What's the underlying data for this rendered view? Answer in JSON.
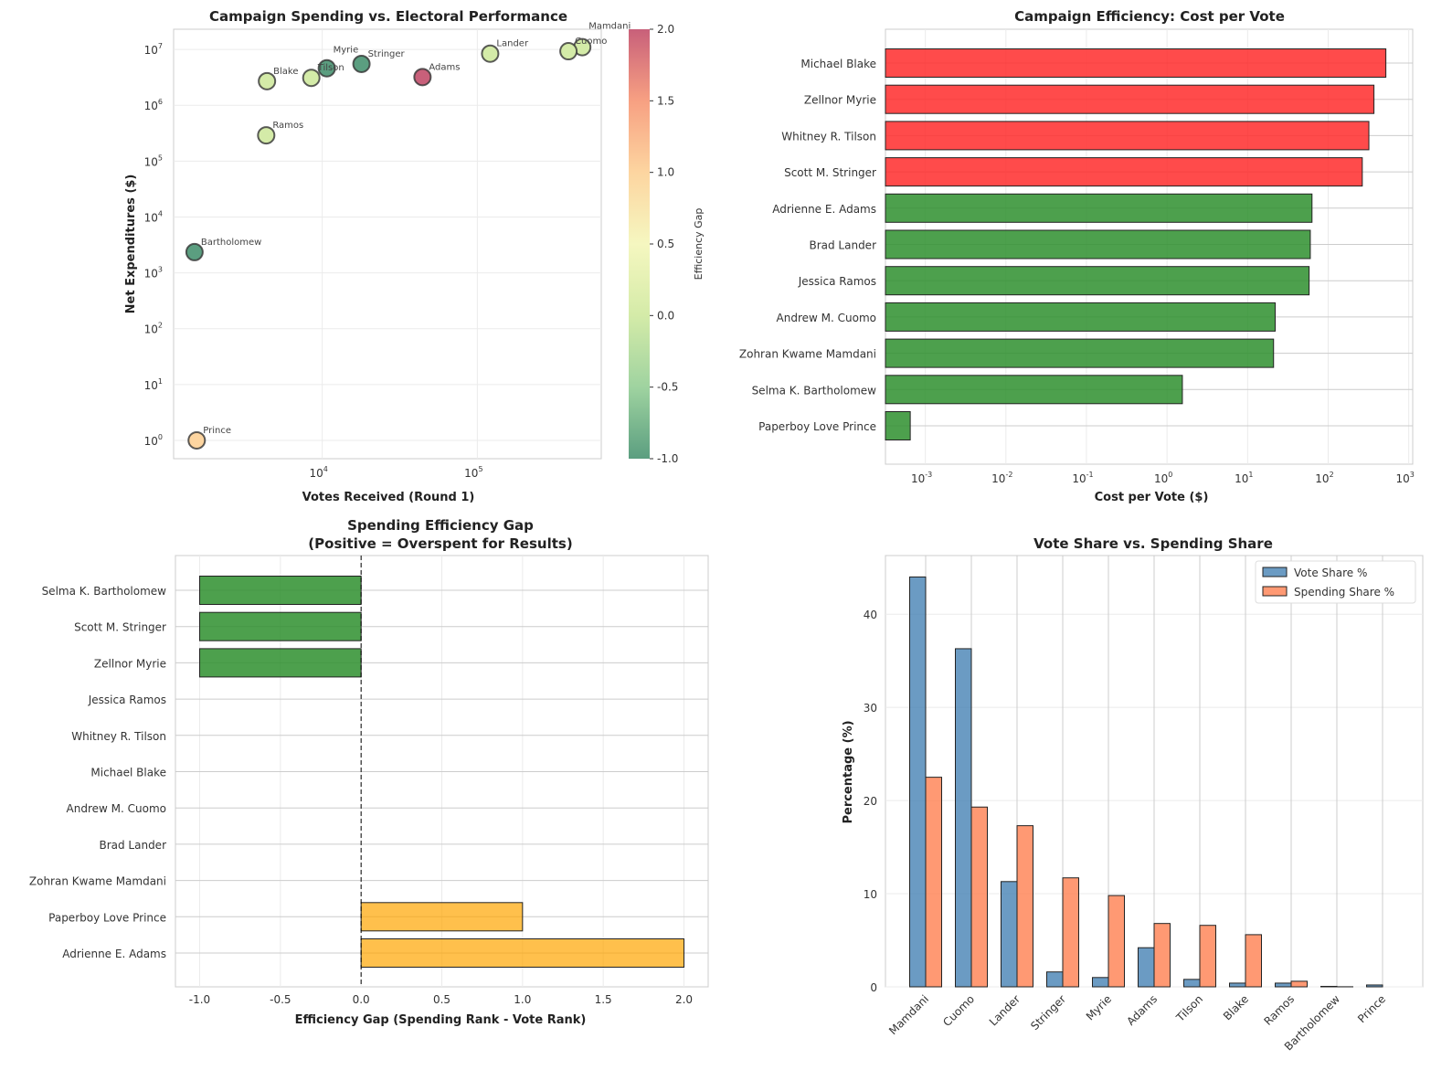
{
  "chart_data": [
    {
      "type": "scatter",
      "title": "Campaign Spending vs. Electoral Performance",
      "xlabel": "Votes Received (Round 1)",
      "ylabel": "Net Expenditures ($)",
      "xscale": "log",
      "yscale": "log",
      "xlim": [
        1100,
        630000
      ],
      "ylim": [
        0.47,
        23000000
      ],
      "x_ticks": [
        "10^4",
        "10^5"
      ],
      "y_ticks": [
        "10^0",
        "10^1",
        "10^2",
        "10^3",
        "10^4",
        "10^5",
        "10^6",
        "10^7"
      ],
      "grid": true,
      "colorbar": {
        "label": "Efficiency Gap",
        "range": [
          -1.0,
          2.0
        ],
        "ticks": [
          "-1.0",
          "-0.5",
          "0.0",
          "0.5",
          "1.0",
          "1.5",
          "2.0"
        ],
        "colormap": "RdYlGn_r"
      },
      "points": [
        {
          "label": "Mamdani",
          "x": 475000,
          "y": 11000000,
          "gap": 0
        },
        {
          "label": "Cuomo",
          "x": 387000,
          "y": 9300000,
          "gap": 0
        },
        {
          "label": "Lander",
          "x": 121000,
          "y": 8400000,
          "gap": 0
        },
        {
          "label": "Stringer",
          "x": 17900,
          "y": 5500000,
          "gap": -1
        },
        {
          "label": "Myrie",
          "x": 10700,
          "y": 4600000,
          "gap": -1
        },
        {
          "label": "Adams",
          "x": 44300,
          "y": 3200000,
          "gap": 2
        },
        {
          "label": "Tilson",
          "x": 8500,
          "y": 3100000,
          "gap": 0
        },
        {
          "label": "Blake",
          "x": 4400,
          "y": 2700000,
          "gap": 0
        },
        {
          "label": "Ramos",
          "x": 4350,
          "y": 290000,
          "gap": 0
        },
        {
          "label": "Bartholomew",
          "x": 1500,
          "y": 2350,
          "gap": -1
        },
        {
          "label": "Prince",
          "x": 1550,
          "y": 1,
          "gap": 1
        }
      ]
    },
    {
      "type": "bar",
      "orientation": "horizontal",
      "title": "Campaign Efficiency: Cost per Vote",
      "xlabel": "Cost per Vote ($)",
      "xscale": "log",
      "xlim": [
        0.00032,
        1120
      ],
      "x_ticks": [
        "10^-3",
        "10^-2",
        "10^-1",
        "10^0",
        "10^1",
        "10^2",
        "10^3"
      ],
      "grid": true,
      "categories": [
        "Michael Blake",
        "Zellnor Myrie",
        "Whitney R. Tilson",
        "Scott M. Stringer",
        "Adrienne E. Adams",
        "Brad Lander",
        "Jessica Ramos",
        "Andrew M. Cuomo",
        "Zohran Kwame Mamdani",
        "Selma K. Bartholomew",
        "Paperboy Love Prince"
      ],
      "values": [
        520,
        370,
        320,
        265,
        63,
        60,
        58,
        22,
        21,
        1.55,
        0.00065
      ],
      "colors": [
        "#ff2b2b",
        "#ff2b2b",
        "#ff2b2b",
        "#ff2b2b",
        "#2e8f2e",
        "#2e8f2e",
        "#2e8f2e",
        "#2e8f2e",
        "#2e8f2e",
        "#2e8f2e",
        "#2e8f2e"
      ]
    },
    {
      "type": "bar",
      "orientation": "horizontal",
      "title": "Spending Efficiency Gap",
      "subtitle": "(Positive = Overspent for Results)",
      "xlabel": "Efficiency Gap (Spending Rank - Vote Rank)",
      "xlim": [
        -1.15,
        2.15
      ],
      "x_ticks": [
        "-1.0",
        "-0.5",
        "0.0",
        "0.5",
        "1.0",
        "1.5",
        "2.0"
      ],
      "grid": true,
      "categories": [
        "Selma K. Bartholomew",
        "Scott M. Stringer",
        "Zellnor Myrie",
        "Jessica Ramos",
        "Whitney R. Tilson",
        "Michael Blake",
        "Andrew M. Cuomo",
        "Brad Lander",
        "Zohran Kwame Mamdani",
        "Paperboy Love Prince",
        "Adrienne E. Adams"
      ],
      "values": [
        -1,
        -1,
        -1,
        0,
        0,
        0,
        0,
        0,
        0,
        1,
        2
      ],
      "negative_color": "#2e8f2e",
      "positive_color": "#ffa500"
    },
    {
      "type": "bar",
      "title": "Vote Share vs. Spending Share",
      "ylabel": "Percentage (%)",
      "ylim": [
        0,
        46.3
      ],
      "y_ticks": [
        "0",
        "10",
        "20",
        "30",
        "40"
      ],
      "grid": true,
      "legend": "top-right",
      "categories": [
        "Mamdani",
        "Cuomo",
        "Lander",
        "Stringer",
        "Myrie",
        "Adams",
        "Tilson",
        "Blake",
        "Ramos",
        "Bartholomew",
        "Prince"
      ],
      "series": [
        {
          "name": "Vote Share %",
          "color": "#4682b4",
          "values": [
            44.0,
            36.3,
            11.3,
            1.6,
            1.0,
            4.2,
            0.8,
            0.4,
            0.4,
            0.05,
            0.2
          ]
        },
        {
          "name": "Spending Share %",
          "color": "#ff7f50",
          "values": [
            22.5,
            19.3,
            17.3,
            11.7,
            9.8,
            6.8,
            6.6,
            5.6,
            0.6,
            0.01,
            0.0
          ]
        }
      ]
    }
  ]
}
